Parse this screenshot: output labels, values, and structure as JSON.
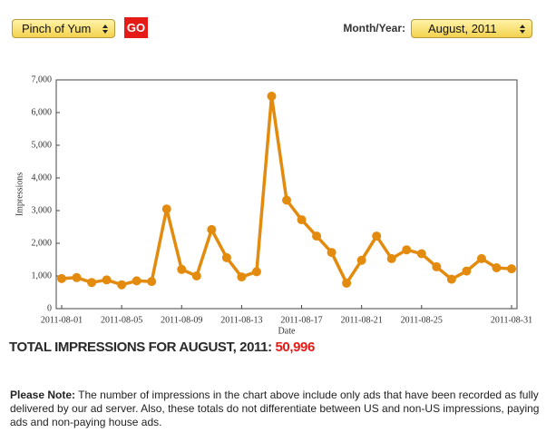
{
  "controls": {
    "site_select": "Pinch of Yum",
    "go_button": "GO",
    "month_label": "Month/Year:",
    "month_select": "August, 2011"
  },
  "chart_data": {
    "type": "line",
    "x_label": "Date",
    "y_label": "Impressions",
    "categories": [
      "2011-08-01",
      null,
      null,
      null,
      "2011-08-05",
      null,
      null,
      null,
      "2011-08-09",
      null,
      null,
      null,
      "2011-08-13",
      null,
      null,
      null,
      "2011-08-17",
      null,
      null,
      null,
      "2011-08-21",
      null,
      null,
      null,
      "2011-08-25",
      null,
      null,
      null,
      null,
      null,
      "2011-08-31"
    ],
    "series": [
      {
        "name": "Impressions",
        "color": "#e38b0e",
        "values": [
          920,
          950,
          800,
          880,
          730,
          850,
          830,
          3050,
          1200,
          1000,
          2420,
          1560,
          970,
          1130,
          6500,
          3320,
          2720,
          2220,
          1720,
          780,
          1480,
          2220,
          1530,
          1800,
          1680,
          1280,
          900,
          1150,
          1530,
          1250,
          1220
        ]
      }
    ],
    "ylim": [
      0,
      7000
    ],
    "yticks": [
      0,
      {
        "value": 1000,
        "label": "1,000"
      },
      {
        "value": 2000,
        "label": "2,000"
      },
      {
        "value": 3000,
        "label": "3,000"
      },
      {
        "value": 4000,
        "label": "4,000"
      },
      {
        "value": 5000,
        "label": "5,000"
      },
      {
        "value": 6000,
        "label": "6,000"
      },
      {
        "value": 7000,
        "label": "7,000"
      }
    ]
  },
  "total": {
    "label": "TOTAL IMPRESSIONS FOR AUGUST, 2011:",
    "value": "50,996"
  },
  "note": {
    "label": "Please Note:",
    "text": "The number of impressions in the chart above include only ads that have been recorded as fully delivered by our ad server. Also, these totals do not differentiate between US and non-US impressions, paying ads and non-paying house ads."
  }
}
